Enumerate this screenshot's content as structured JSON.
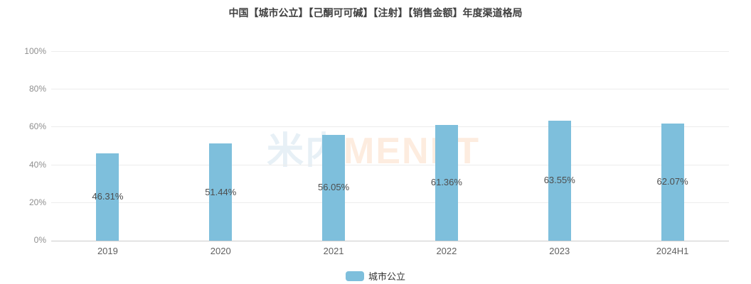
{
  "chart_data": {
    "type": "bar",
    "title": "中国【城市公立】【己酮可可碱】【注射】【销售金额】年度渠道格局",
    "categories": [
      "2019",
      "2020",
      "2021",
      "2022",
      "2023",
      "2024H1"
    ],
    "series": [
      {
        "name": "城市公立",
        "values": [
          46.31,
          51.44,
          56.05,
          61.36,
          63.55,
          62.07
        ]
      }
    ],
    "value_labels": [
      "46.31%",
      "51.44%",
      "56.05%",
      "61.36%",
      "63.55%",
      "62.07%"
    ],
    "xlabel": "",
    "ylabel": "",
    "ylim": [
      0,
      100
    ],
    "yticks": [
      0,
      20,
      40,
      60,
      80,
      100
    ],
    "ytick_labels": [
      "0%",
      "20%",
      "40%",
      "60%",
      "80%",
      "100%"
    ],
    "grid": true,
    "legend_position": "bottom",
    "bar_color": "#7ebfdc"
  },
  "legend": {
    "label": "城市公立"
  },
  "watermark": {
    "cn": "米内",
    "en": "MENET"
  },
  "colors": {
    "bar": "#7ebfdc",
    "title_text": "#404040",
    "axis_label": "#606060",
    "ytick_label": "#8f8f8f",
    "value_label": "#4d4d4d",
    "gridline": "#ececec",
    "axis_line": "#cccccc",
    "watermark_cn": "#e7f0f6",
    "watermark_en": "#fdecdf",
    "background": "#ffffff"
  }
}
